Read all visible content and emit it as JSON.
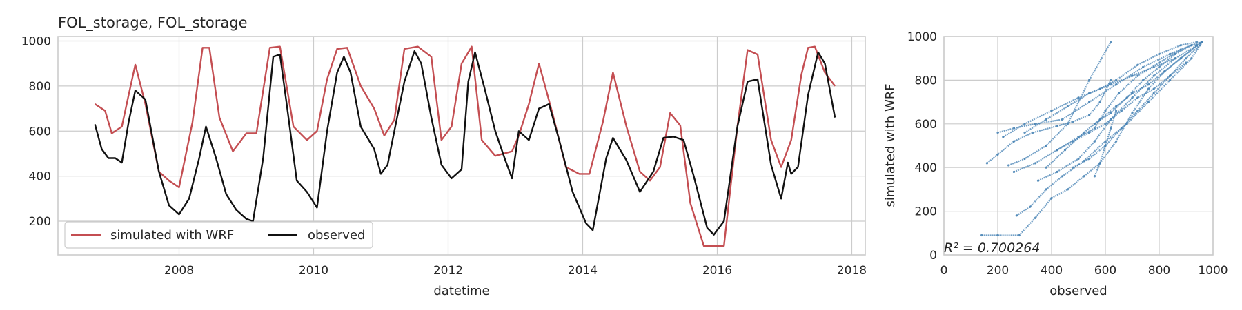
{
  "chart_data": [
    {
      "type": "line",
      "title": "FOL_storage, FOL_storage",
      "xlabel": "datetime",
      "ylabel": "",
      "xlim": [
        2006.2,
        2018.2
      ],
      "ylim": [
        50,
        1020
      ],
      "xticks": [
        2008,
        2010,
        2012,
        2014,
        2016,
        2018
      ],
      "xtick_labels": [
        "2008",
        "2010",
        "2012",
        "2014",
        "2016",
        "2018"
      ],
      "yticks": [
        200,
        400,
        600,
        800,
        1000
      ],
      "ytick_labels": [
        "200",
        "400",
        "600",
        "800",
        "1000"
      ],
      "grid": true,
      "legend": {
        "placement": "lower-left",
        "columns": 2
      },
      "series": [
        {
          "name": "simulated with WRF",
          "color": "#c44e52",
          "x": [
            2006.75,
            2006.9,
            2007.0,
            2007.15,
            2007.25,
            2007.35,
            2007.5,
            2007.7,
            2007.85,
            2008.0,
            2008.2,
            2008.35,
            2008.45,
            2008.6,
            2008.8,
            2009.0,
            2009.15,
            2009.35,
            2009.5,
            2009.7,
            2009.9,
            2010.05,
            2010.2,
            2010.35,
            2010.5,
            2010.7,
            2010.9,
            2011.05,
            2011.2,
            2011.35,
            2011.55,
            2011.75,
            2011.9,
            2012.05,
            2012.2,
            2012.35,
            2012.5,
            2012.7,
            2012.95,
            2013.05,
            2013.2,
            2013.35,
            2013.55,
            2013.75,
            2013.95,
            2014.1,
            2014.3,
            2014.45,
            2014.65,
            2014.85,
            2015.0,
            2015.15,
            2015.3,
            2015.45,
            2015.6,
            2015.8,
            2015.95,
            2016.1,
            2016.3,
            2016.45,
            2016.6,
            2016.8,
            2016.95,
            2017.1,
            2017.25,
            2017.35,
            2017.45,
            2017.6,
            2017.75
          ],
          "y": [
            720,
            690,
            590,
            620,
            760,
            895,
            720,
            420,
            380,
            350,
            640,
            970,
            970,
            660,
            510,
            590,
            590,
            970,
            975,
            620,
            560,
            600,
            830,
            965,
            970,
            800,
            700,
            580,
            650,
            965,
            975,
            930,
            560,
            620,
            900,
            975,
            560,
            490,
            510,
            580,
            720,
            900,
            680,
            440,
            410,
            410,
            640,
            860,
            620,
            420,
            380,
            440,
            680,
            625,
            280,
            90,
            90,
            90,
            620,
            960,
            940,
            560,
            440,
            560,
            850,
            970,
            975,
            860,
            800
          ]
        },
        {
          "name": "observed",
          "color": "#111111",
          "x": [
            2006.75,
            2006.85,
            2006.95,
            2007.05,
            2007.15,
            2007.25,
            2007.35,
            2007.5,
            2007.7,
            2007.85,
            2008.0,
            2008.15,
            2008.3,
            2008.4,
            2008.55,
            2008.7,
            2008.85,
            2009.0,
            2009.1,
            2009.25,
            2009.4,
            2009.5,
            2009.6,
            2009.75,
            2009.9,
            2010.05,
            2010.2,
            2010.35,
            2010.45,
            2010.55,
            2010.7,
            2010.9,
            2011.0,
            2011.1,
            2011.2,
            2011.35,
            2011.5,
            2011.6,
            2011.75,
            2011.9,
            2012.05,
            2012.2,
            2012.3,
            2012.4,
            2012.55,
            2012.7,
            2012.85,
            2012.95,
            2013.05,
            2013.2,
            2013.35,
            2013.5,
            2013.65,
            2013.85,
            2014.05,
            2014.15,
            2014.35,
            2014.45,
            2014.65,
            2014.85,
            2015.05,
            2015.2,
            2015.35,
            2015.5,
            2015.65,
            2015.85,
            2015.95,
            2016.1,
            2016.3,
            2016.45,
            2016.6,
            2016.8,
            2016.95,
            2017.05,
            2017.1,
            2017.2,
            2017.35,
            2017.5,
            2017.6,
            2017.75
          ],
          "y": [
            630,
            520,
            480,
            480,
            460,
            640,
            780,
            740,
            420,
            270,
            230,
            300,
            480,
            620,
            480,
            320,
            250,
            210,
            200,
            480,
            930,
            940,
            720,
            380,
            330,
            260,
            600,
            860,
            930,
            860,
            620,
            520,
            410,
            450,
            600,
            820,
            955,
            900,
            660,
            450,
            390,
            430,
            820,
            950,
            780,
            600,
            470,
            390,
            600,
            560,
            700,
            720,
            560,
            330,
            190,
            160,
            480,
            570,
            470,
            330,
            420,
            570,
            575,
            560,
            400,
            170,
            140,
            200,
            620,
            820,
            830,
            450,
            300,
            460,
            410,
            440,
            760,
            950,
            900,
            660
          ]
        }
      ]
    },
    {
      "type": "scatter",
      "title": "",
      "xlabel": "observed",
      "ylabel": "simulated with WRF",
      "xlim": [
        0,
        1000
      ],
      "ylim": [
        0,
        1000
      ],
      "xticks": [
        0,
        200,
        400,
        600,
        800,
        1000
      ],
      "xtick_labels": [
        "0",
        "200",
        "400",
        "600",
        "800",
        "1000"
      ],
      "yticks": [
        0,
        200,
        400,
        600,
        800,
        1000
      ],
      "ytick_labels": [
        "0",
        "200",
        "400",
        "600",
        "800",
        "1000"
      ],
      "grid": true,
      "annotation": "R² = 0.700264",
      "color": "#4682b4",
      "traces": [
        {
          "x": [
            140,
            200,
            280,
            340,
            400,
            460,
            520,
            580,
            640,
            700,
            760,
            820,
            880,
            960
          ],
          "y": [
            90,
            90,
            90,
            170,
            260,
            300,
            360,
            420,
            520,
            650,
            760,
            840,
            900,
            975
          ]
        },
        {
          "x": [
            270,
            320,
            380,
            440,
            520,
            600,
            680,
            760,
            840,
            920,
            960
          ],
          "y": [
            180,
            220,
            300,
            360,
            430,
            520,
            600,
            700,
            800,
            900,
            975
          ]
        },
        {
          "x": [
            240,
            300,
            380,
            460,
            540,
            620
          ],
          "y": [
            410,
            440,
            500,
            600,
            800,
            975
          ]
        },
        {
          "x": [
            160,
            200,
            260,
            330,
            420,
            480,
            540,
            580,
            620
          ],
          "y": [
            420,
            460,
            520,
            560,
            590,
            610,
            640,
            700,
            800
          ]
        },
        {
          "x": [
            200,
            260,
            340,
            440,
            540,
            640,
            740,
            840,
            920
          ],
          "y": [
            560,
            580,
            600,
            620,
            700,
            780,
            860,
            920,
            960
          ]
        },
        {
          "x": [
            220,
            300,
            400,
            500,
            580,
            640,
            720,
            800,
            880,
            940
          ],
          "y": [
            540,
            600,
            660,
            720,
            760,
            800,
            870,
            920,
            960,
            975
          ]
        },
        {
          "x": [
            350,
            420,
            500,
            560,
            620,
            700,
            780,
            860,
            940
          ],
          "y": [
            340,
            380,
            440,
            520,
            620,
            720,
            820,
            900,
            960
          ]
        },
        {
          "x": [
            380,
            450,
            520,
            580,
            640,
            700,
            760,
            820,
            880,
            950
          ],
          "y": [
            400,
            480,
            560,
            620,
            680,
            740,
            780,
            840,
            900,
            970
          ]
        },
        {
          "x": [
            420,
            480,
            540,
            600,
            660,
            720,
            780,
            840,
            900
          ],
          "y": [
            480,
            520,
            560,
            600,
            660,
            720,
            760,
            820,
            880
          ]
        },
        {
          "x": [
            560,
            620,
            680,
            740,
            800,
            860,
            920,
            960
          ],
          "y": [
            600,
            650,
            720,
            800,
            860,
            920,
            960,
            975
          ]
        },
        {
          "x": [
            260,
            340,
            420,
            500,
            560,
            600,
            650,
            720,
            800,
            880
          ],
          "y": [
            380,
            420,
            480,
            540,
            580,
            660,
            740,
            820,
            880,
            940
          ]
        },
        {
          "x": [
            300,
            380,
            460,
            540,
            620,
            700,
            780,
            860
          ],
          "y": [
            560,
            620,
            680,
            740,
            780,
            820,
            860,
            900
          ]
        },
        {
          "x": [
            480,
            540,
            600,
            660,
            720,
            780,
            840,
            900,
            950
          ],
          "y": [
            400,
            440,
            500,
            580,
            660,
            740,
            820,
            900,
            960
          ]
        },
        {
          "x": [
            560,
            580,
            600,
            620,
            640
          ],
          "y": [
            360,
            420,
            500,
            580,
            660
          ]
        }
      ]
    }
  ]
}
